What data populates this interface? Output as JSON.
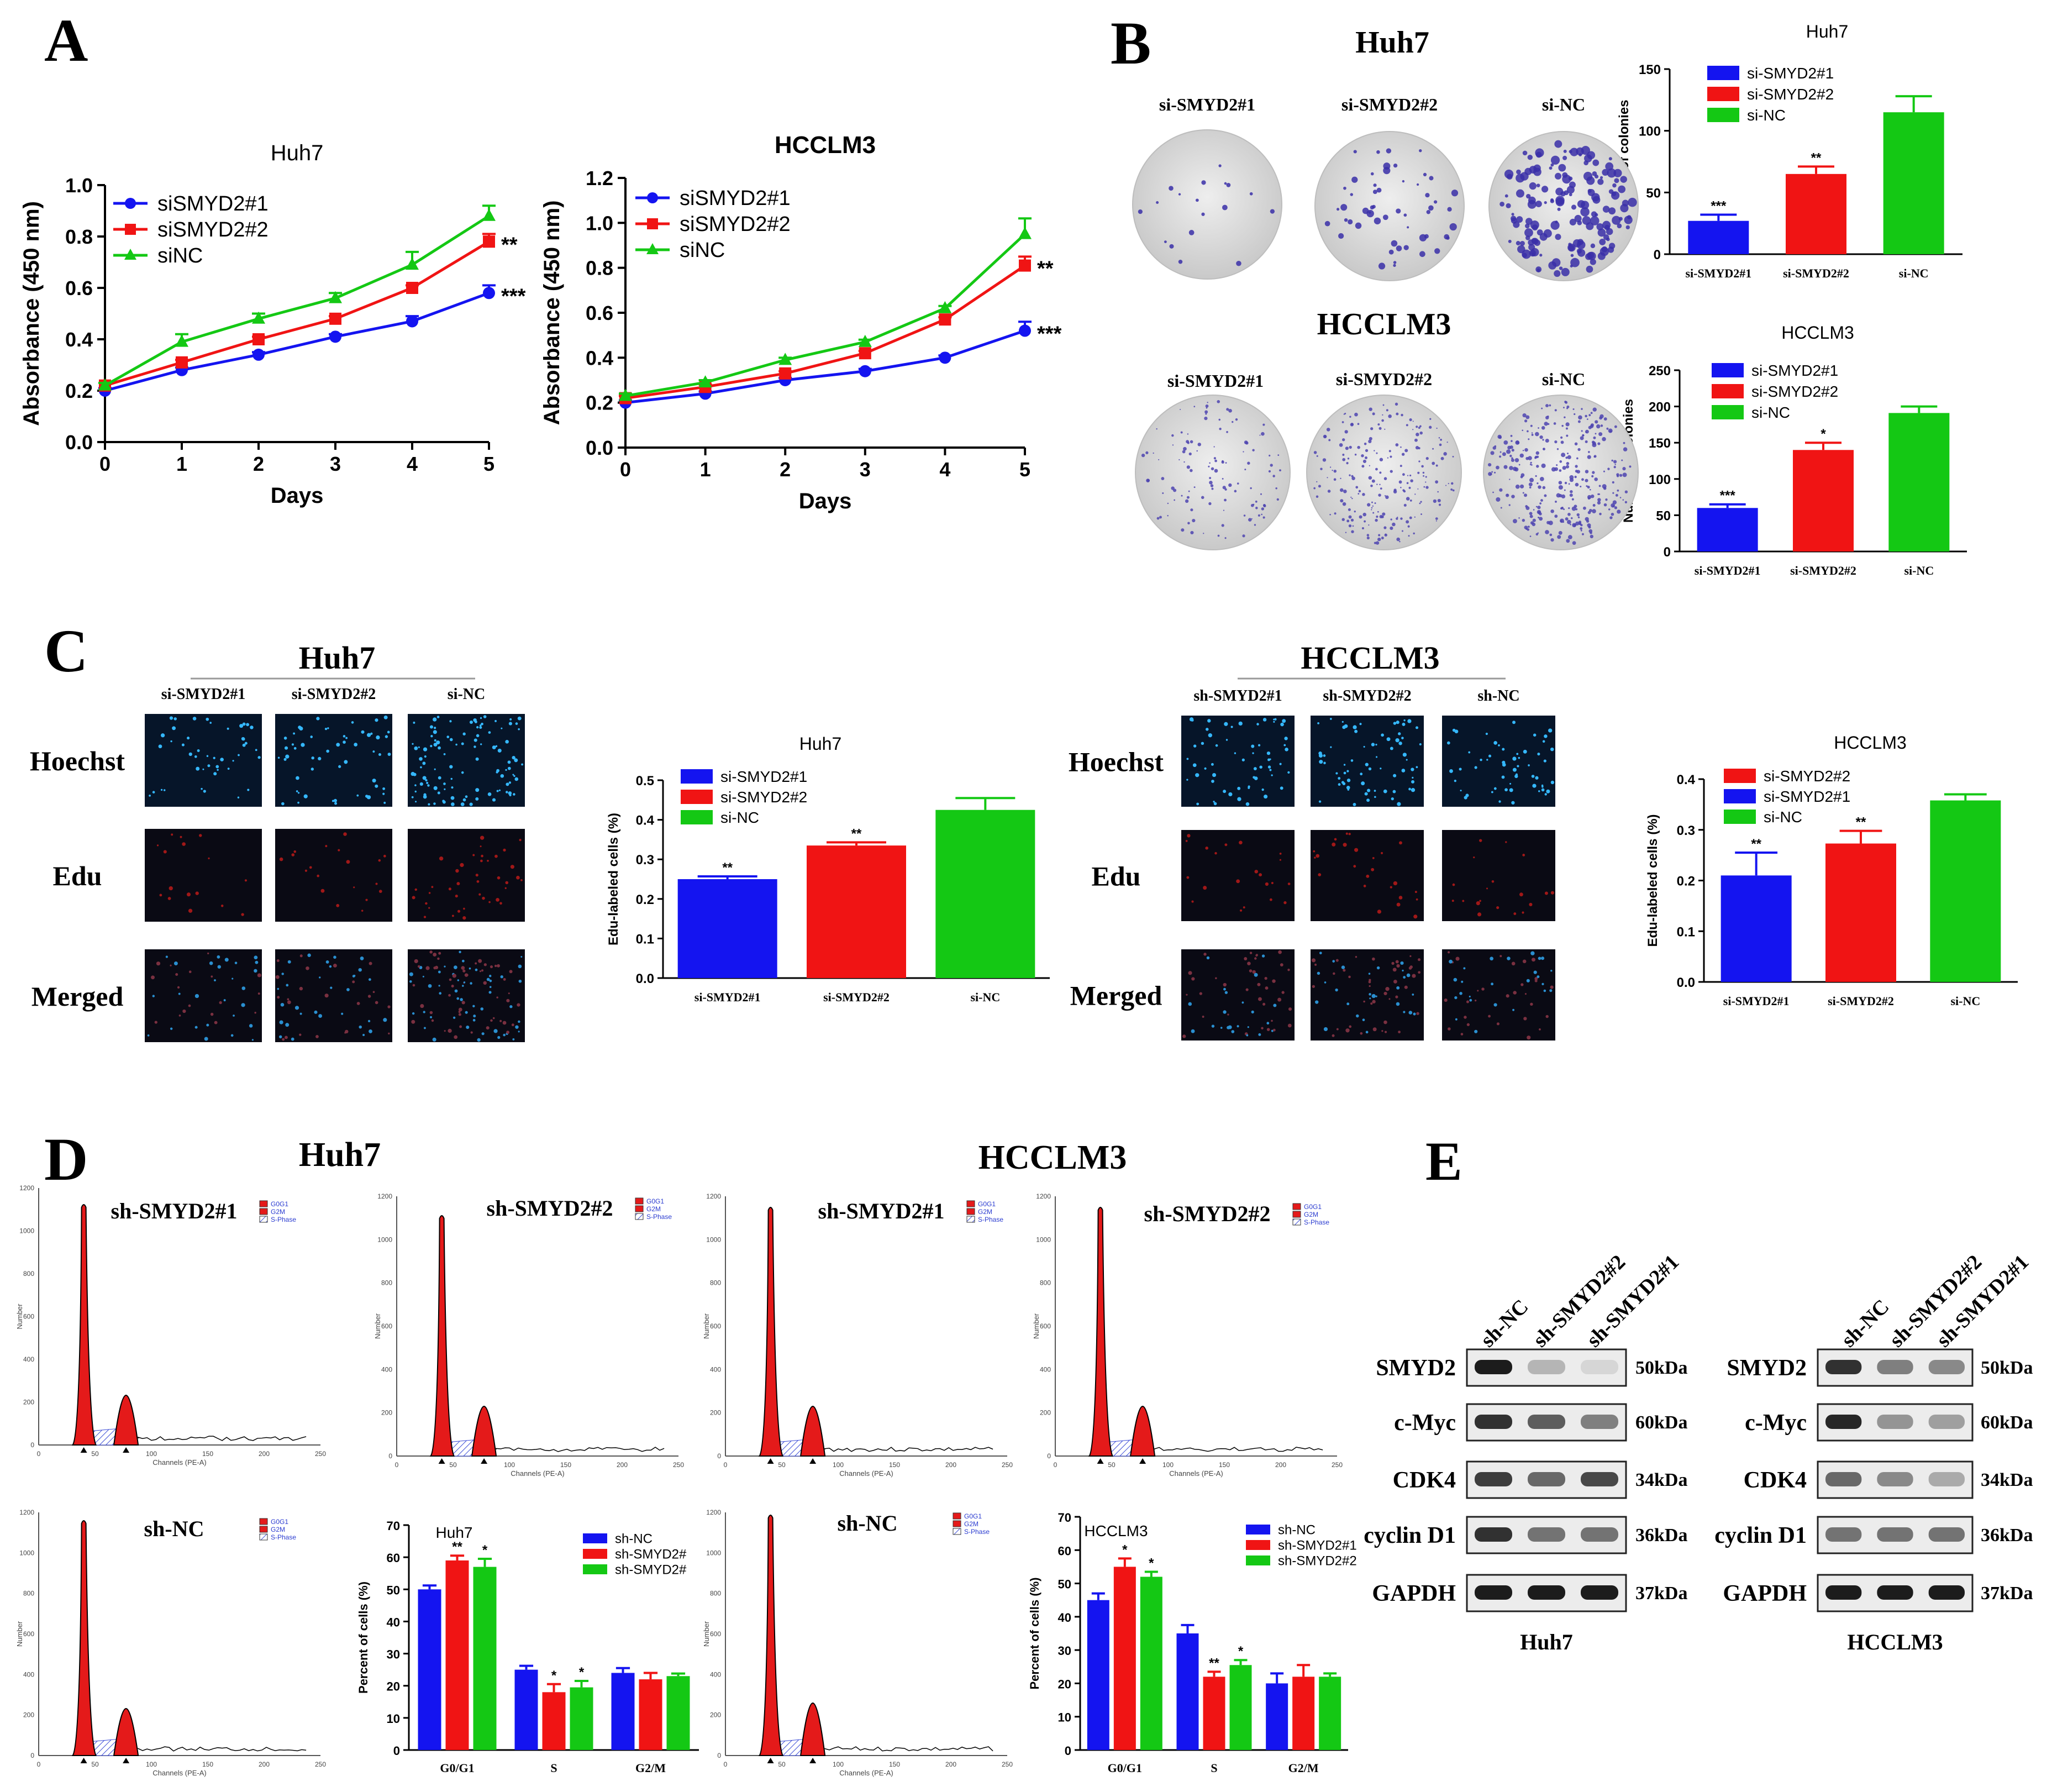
{
  "colors": {
    "blue": "#1414f0",
    "red": "#f01414",
    "green": "#14c814",
    "histfill": "#e41a1a",
    "dark": "#111111"
  },
  "panels": {
    "A": {
      "label": "A"
    },
    "B": {
      "label": "B",
      "huh7_title": "Huh7",
      "hcclm3_title": "HCCLM3",
      "dishes": [
        "si-SMYD2#1",
        "si-SMYD2#2",
        "si-NC"
      ]
    },
    "C": {
      "label": "C",
      "huh7_title": "Huh7",
      "hcclm3_title": "HCCLM3",
      "huh7_cols": [
        "si-SMYD2#1",
        "si-SMYD2#2",
        "si-NC"
      ],
      "hcclm3_cols": [
        "sh-SMYD2#1",
        "sh-SMYD2#2",
        "sh-NC"
      ],
      "rows": [
        "Hoechst",
        "Edu",
        "Merged"
      ]
    },
    "D": {
      "label": "D",
      "huh7_title": "Huh7",
      "hcclm3_title": "HCCLM3",
      "hist_titles": {
        "h1": "sh-SMYD2#1",
        "h2": "sh-SMYD2#2",
        "h3": "sh-NC",
        "m1": "sh-SMYD2#1",
        "m2": "sh-SMYD2#2",
        "m3": "sh-NC"
      },
      "hist_legend": [
        "G0G1",
        "G2M",
        "S-Phase"
      ],
      "hist_xlabel": "Channels (PE-A)",
      "hist_ylabel": "Number",
      "hist_xticks": [
        "0",
        "50",
        "100",
        "150",
        "200",
        "250"
      ],
      "hist_yticks": [
        "0",
        "200",
        "400",
        "600",
        "800",
        "1000",
        "1200"
      ]
    },
    "E": {
      "label": "E",
      "lanes_huh7": [
        "sh-NC",
        "sh-SMYD2#2",
        "sh-SMYD2#1"
      ],
      "lanes_hcclm3": [
        "sh-NC",
        "sh-SMYD2#2",
        "sh-SMYD2#1"
      ],
      "proteins": [
        "SMYD2",
        "c-Myc",
        "CDK4",
        "cyclin D1",
        "GAPDH"
      ],
      "sizes": [
        "50kDa",
        "60kDa",
        "34kDa",
        "36kDa",
        "37kDa"
      ],
      "huh7_label": "Huh7",
      "hcclm3_label": "HCCLM3"
    }
  },
  "chart_data": [
    {
      "id": "A-huh7",
      "type": "line",
      "title": "Huh7",
      "xlabel": "Days",
      "ylabel": "Absorbance (450 nm)",
      "x": [
        0,
        1,
        2,
        3,
        4,
        5
      ],
      "xlim": [
        0,
        5
      ],
      "ylim": [
        0,
        1.0
      ],
      "yticks": [
        "0.0",
        "0.2",
        "0.4",
        "0.6",
        "0.8",
        "1.0"
      ],
      "series": [
        {
          "name": "siSMYD2#1",
          "color": "blue",
          "marker": "circle",
          "values": [
            0.2,
            0.28,
            0.34,
            0.41,
            0.47,
            0.58
          ],
          "err": [
            0.01,
            0.01,
            0.01,
            0.01,
            0.02,
            0.03
          ],
          "sig": "***"
        },
        {
          "name": "siSMYD2#2",
          "color": "red",
          "marker": "square",
          "values": [
            0.22,
            0.31,
            0.4,
            0.48,
            0.6,
            0.78
          ],
          "err": [
            0.01,
            0.01,
            0.01,
            0.01,
            0.01,
            0.03
          ],
          "sig": "**"
        },
        {
          "name": "siNC",
          "color": "green",
          "marker": "triangle",
          "values": [
            0.22,
            0.39,
            0.48,
            0.56,
            0.69,
            0.88
          ],
          "err": [
            0.01,
            0.03,
            0.02,
            0.02,
            0.05,
            0.04
          ],
          "sig": ""
        }
      ]
    },
    {
      "id": "A-hcclm3",
      "type": "line",
      "title": "HCCLM3",
      "xlabel": "Days",
      "ylabel": "Absorbance (450 nm)",
      "x": [
        0,
        1,
        2,
        3,
        4,
        5
      ],
      "xlim": [
        0,
        5
      ],
      "ylim": [
        0,
        1.2
      ],
      "yticks": [
        "0.0",
        "0.2",
        "0.4",
        "0.6",
        "0.8",
        "1.0",
        "1.2"
      ],
      "series": [
        {
          "name": "siSMYD2#1",
          "color": "blue",
          "marker": "circle",
          "values": [
            0.2,
            0.24,
            0.3,
            0.34,
            0.4,
            0.52
          ],
          "err": [
            0.01,
            0.01,
            0.01,
            0.01,
            0.01,
            0.04
          ],
          "sig": "***"
        },
        {
          "name": "siSMYD2#2",
          "color": "red",
          "marker": "square",
          "values": [
            0.22,
            0.27,
            0.33,
            0.42,
            0.57,
            0.81
          ],
          "err": [
            0.01,
            0.01,
            0.01,
            0.01,
            0.01,
            0.04
          ],
          "sig": "**"
        },
        {
          "name": "siNC",
          "color": "green",
          "marker": "triangle",
          "values": [
            0.23,
            0.29,
            0.39,
            0.47,
            0.62,
            0.95
          ],
          "err": [
            0.01,
            0.01,
            0.01,
            0.01,
            0.01,
            0.07
          ],
          "sig": ""
        }
      ]
    },
    {
      "id": "B-huh7",
      "type": "bar",
      "title": "Huh7",
      "ylabel": "Number of colonies",
      "categories": [
        "si-SMYD2#1",
        "si-SMYD2#2",
        "si-NC"
      ],
      "colors": [
        "blue",
        "red",
        "green"
      ],
      "values": [
        27,
        65,
        115
      ],
      "err": [
        5,
        6,
        13
      ],
      "sig": [
        "***",
        "**",
        ""
      ],
      "ylim": [
        0,
        150
      ],
      "yticks": [
        "0",
        "50",
        "100",
        "150"
      ],
      "legend": [
        "si-SMYD2#1",
        "si-SMYD2#2",
        "si-NC"
      ]
    },
    {
      "id": "B-hcclm3",
      "type": "bar",
      "title": "HCCLM3",
      "ylabel": "Number of colonies",
      "categories": [
        "si-SMYD2#1",
        "si-SMYD2#2",
        "si-NC"
      ],
      "colors": [
        "blue",
        "red",
        "green"
      ],
      "values": [
        60,
        140,
        191
      ],
      "err": [
        5,
        10,
        9
      ],
      "sig": [
        "***",
        "*",
        ""
      ],
      "ylim": [
        0,
        250
      ],
      "yticks": [
        "0",
        "50",
        "100",
        "150",
        "200",
        "250"
      ],
      "legend": [
        "si-SMYD2#1",
        "si-SMYD2#2",
        "si-NC"
      ]
    },
    {
      "id": "C-huh7",
      "type": "bar",
      "title": "Huh7",
      "ylabel": "Edu-labeled cells (%)",
      "categories": [
        "si-SMYD2#1",
        "si-SMYD2#2",
        "si-NC"
      ],
      "colors": [
        "blue",
        "red",
        "green"
      ],
      "values": [
        0.25,
        0.335,
        0.425
      ],
      "err": [
        0.007,
        0.008,
        0.03
      ],
      "sig": [
        "**",
        "**",
        ""
      ],
      "ylim": [
        0,
        0.5
      ],
      "yticks": [
        "0.0",
        "0.1",
        "0.2",
        "0.3",
        "0.4",
        "0.5"
      ],
      "legend": [
        "si-SMYD2#1",
        "si-SMYD2#2",
        "si-NC"
      ]
    },
    {
      "id": "C-hcclm3",
      "type": "bar",
      "title": "HCCLM3",
      "ylabel": "Edu-labeled cells (%)",
      "categories": [
        "si-SMYD2#1",
        "si-SMYD2#2",
        "si-NC"
      ],
      "colors": [
        "blue",
        "red",
        "green"
      ],
      "values": [
        0.21,
        0.273,
        0.358
      ],
      "err": [
        0.045,
        0.025,
        0.012
      ],
      "sig": [
        "**",
        "**",
        ""
      ],
      "ylim": [
        0,
        0.4
      ],
      "yticks": [
        "0.0",
        "0.1",
        "0.2",
        "0.3",
        "0.4"
      ],
      "legend": [
        "si-SMYD2#2",
        "si-SMYD2#1",
        "si-NC"
      ],
      "legend_colors": [
        "red",
        "blue",
        "green"
      ]
    },
    {
      "id": "D-huh7",
      "type": "bar",
      "title": "Huh7",
      "ylabel": "Percent of cells (%)",
      "categories": [
        "G0/G1",
        "S",
        "G2/M"
      ],
      "legend": [
        "sh-NC",
        "sh-SMYD2#",
        "sh-SMYD2#"
      ],
      "ylim": [
        0,
        70
      ],
      "yticks": [
        "0",
        "10",
        "20",
        "30",
        "40",
        "50",
        "60",
        "70"
      ],
      "series": [
        {
          "name": "sh-NC",
          "color": "blue",
          "values": [
            50,
            25,
            24
          ],
          "err": [
            1.2,
            1.2,
            1.5
          ],
          "sig": [
            "",
            "",
            ""
          ]
        },
        {
          "name": "sh-SMYD2#",
          "color": "red",
          "values": [
            59,
            18,
            22
          ],
          "err": [
            1.5,
            2.5,
            2
          ],
          "sig": [
            "**",
            "*",
            ""
          ]
        },
        {
          "name": "sh-SMYD2#",
          "color": "green",
          "values": [
            57,
            19.5,
            23
          ],
          "err": [
            2.5,
            2,
            0.8
          ],
          "sig": [
            "*",
            "*",
            ""
          ]
        }
      ]
    },
    {
      "id": "D-hcclm3",
      "type": "bar",
      "title": "HCCLM3",
      "ylabel": "Percent of cells (%)",
      "categories": [
        "G0/G1",
        "S",
        "G2/M"
      ],
      "legend": [
        "sh-NC",
        "sh-SMYD2#1",
        "sh-SMYD2#2"
      ],
      "ylim": [
        0,
        70
      ],
      "yticks": [
        "0",
        "10",
        "20",
        "30",
        "40",
        "50",
        "60",
        "70"
      ],
      "series": [
        {
          "name": "sh-NC",
          "color": "blue",
          "values": [
            45,
            35,
            20
          ],
          "err": [
            2,
            2.5,
            3
          ]
        },
        {
          "name": "sh-SMYD2#1",
          "color": "red",
          "values": [
            55,
            22,
            22
          ],
          "err": [
            2.5,
            1.5,
            3.5
          ],
          "sig": [
            "*",
            "**",
            ""
          ]
        },
        {
          "name": "sh-SMYD2#2",
          "color": "green",
          "values": [
            52,
            25.5,
            22
          ],
          "err": [
            1.5,
            1.5,
            1
          ],
          "sig": [
            "*",
            "*",
            ""
          ]
        }
      ]
    }
  ]
}
